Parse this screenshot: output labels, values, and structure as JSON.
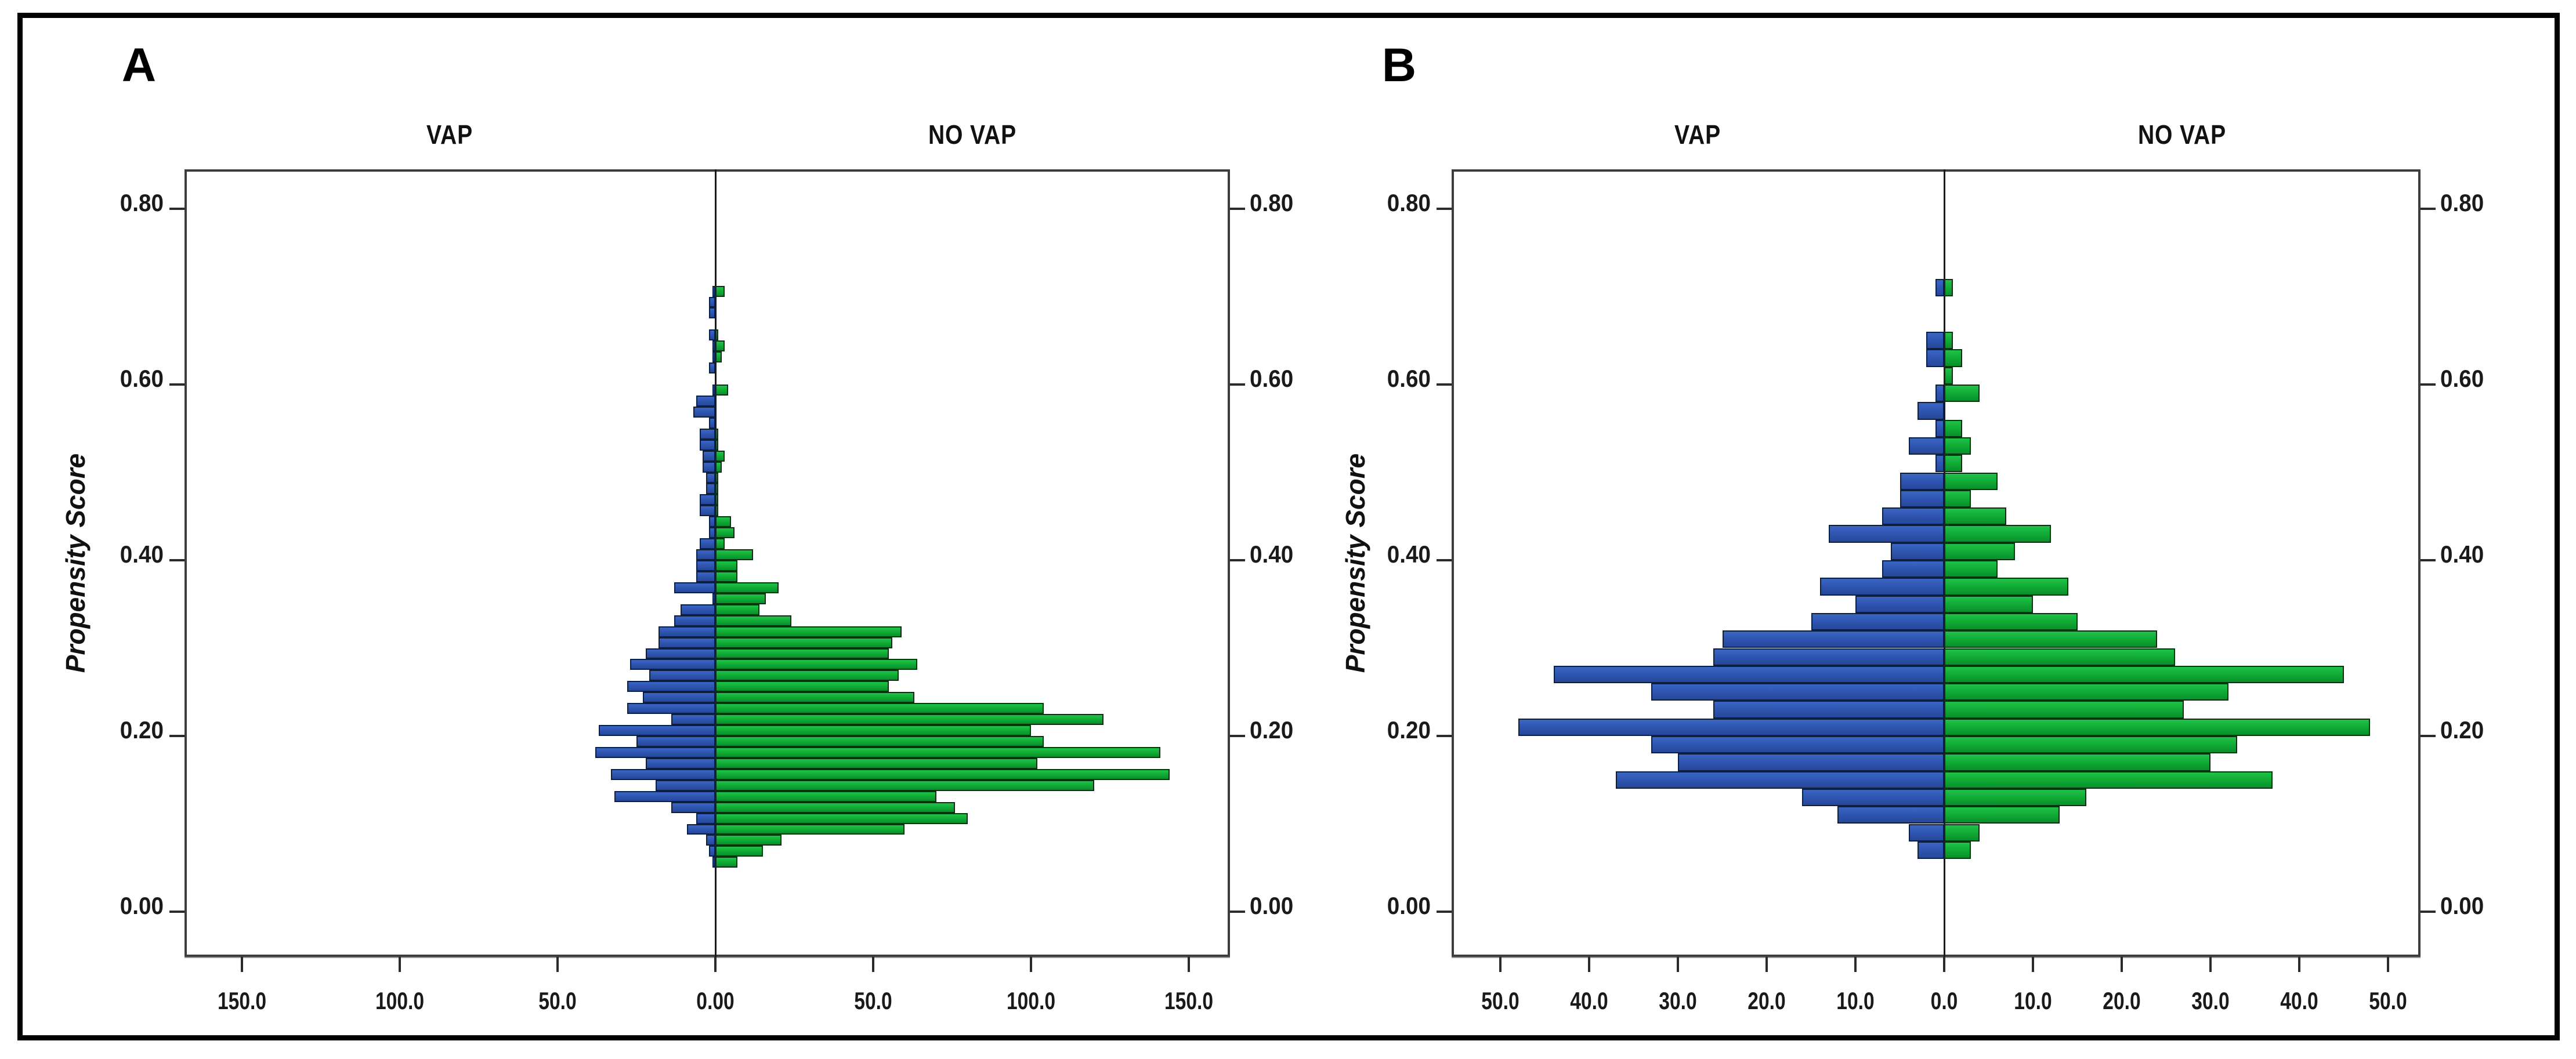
{
  "colors": {
    "vap_blue": "#2f56b2",
    "no_vap_green": "#10ab35",
    "vap_border": "#0d1f3f",
    "no_vap_border": "#06340f",
    "frame_gray": "#3d3d3d",
    "outer_border_black": "#000000",
    "background_white": "#ffffff",
    "text_black": "#1a1a1a"
  },
  "chart_data": [
    {
      "type": "bar",
      "variant": "mirrored_histogram_population_pyramid",
      "panel_label": "A",
      "group_left": "VAP",
      "group_right": "NO VAP",
      "ylabel": "Propensity Score",
      "xlabel": "",
      "legend": "none",
      "grid": "off",
      "ylim": [
        -0.05,
        0.845
      ],
      "xlim_each_side": 168,
      "bin_width": 0.0125,
      "y_ticks": [
        {
          "label": "0.80",
          "value": 0.8
        },
        {
          "label": "0.60",
          "value": 0.6
        },
        {
          "label": "0.40",
          "value": 0.4
        },
        {
          "label": "0.20",
          "value": 0.2
        },
        {
          "label": "0.00",
          "value": 0.0
        }
      ],
      "x_ticks": [
        {
          "label": "150.0",
          "value": -150
        },
        {
          "label": "100.0",
          "value": -100
        },
        {
          "label": "50.0",
          "value": -50
        },
        {
          "label": "0.00",
          "value": 0
        },
        {
          "label": "50.0",
          "value": 50
        },
        {
          "label": "100.0",
          "value": 100
        },
        {
          "label": "150.0",
          "value": 150
        }
      ],
      "bins_note": "each bin = [propensity_score_bin_start, vap_count, no_vap_count]",
      "bins": [
        [
          0.05,
          1,
          7
        ],
        [
          0.0625,
          2,
          15
        ],
        [
          0.075,
          3,
          21
        ],
        [
          0.0875,
          9,
          60
        ],
        [
          0.1,
          6,
          80
        ],
        [
          0.1125,
          14,
          76
        ],
        [
          0.125,
          32,
          70
        ],
        [
          0.1375,
          19,
          120
        ],
        [
          0.15,
          33,
          144
        ],
        [
          0.1625,
          22,
          102
        ],
        [
          0.175,
          38,
          141
        ],
        [
          0.1875,
          25,
          104
        ],
        [
          0.2,
          37,
          100
        ],
        [
          0.2125,
          14,
          123
        ],
        [
          0.225,
          28,
          104
        ],
        [
          0.2375,
          23,
          63
        ],
        [
          0.25,
          28,
          55
        ],
        [
          0.2625,
          21,
          58
        ],
        [
          0.275,
          27,
          64
        ],
        [
          0.2875,
          22,
          55
        ],
        [
          0.3,
          18,
          56
        ],
        [
          0.3125,
          18,
          59
        ],
        [
          0.325,
          13,
          24
        ],
        [
          0.3375,
          11,
          14
        ],
        [
          0.35,
          1,
          16
        ],
        [
          0.3625,
          13,
          20
        ],
        [
          0.375,
          6,
          7
        ],
        [
          0.3875,
          6,
          7
        ],
        [
          0.4,
          6,
          12
        ],
        [
          0.4125,
          5,
          3
        ],
        [
          0.425,
          2,
          6
        ],
        [
          0.4375,
          2,
          5
        ],
        [
          0.45,
          5,
          1
        ],
        [
          0.4625,
          5,
          1
        ],
        [
          0.475,
          3,
          1
        ],
        [
          0.4875,
          3,
          1
        ],
        [
          0.5,
          4,
          2
        ],
        [
          0.5125,
          4,
          3
        ],
        [
          0.525,
          5,
          1
        ],
        [
          0.5375,
          5,
          1
        ],
        [
          0.55,
          2,
          0
        ],
        [
          0.5625,
          7,
          0
        ],
        [
          0.575,
          6,
          0
        ],
        [
          0.5875,
          1,
          4
        ],
        [
          0.6,
          0,
          0
        ],
        [
          0.6125,
          2,
          0
        ],
        [
          0.625,
          1,
          2
        ],
        [
          0.6375,
          1,
          3
        ],
        [
          0.65,
          2,
          1
        ],
        [
          0.6625,
          0,
          0
        ],
        [
          0.675,
          2,
          0
        ],
        [
          0.6875,
          2,
          0
        ],
        [
          0.7,
          1,
          3
        ]
      ]
    },
    {
      "type": "bar",
      "variant": "mirrored_histogram_population_pyramid",
      "panel_label": "B",
      "group_left": "VAP",
      "group_right": "NO VAP",
      "ylabel": "Propensity Score",
      "xlabel": "",
      "legend": "none",
      "grid": "off",
      "ylim": [
        -0.05,
        0.845
      ],
      "xlim_each_side": 55,
      "bin_width": 0.02,
      "y_ticks": [
        {
          "label": "0.80",
          "value": 0.8
        },
        {
          "label": "0.60",
          "value": 0.6
        },
        {
          "label": "0.40",
          "value": 0.4
        },
        {
          "label": "0.20",
          "value": 0.2
        },
        {
          "label": "0.00",
          "value": 0.0
        }
      ],
      "x_ticks": [
        {
          "label": "50.0",
          "value": -50
        },
        {
          "label": "40.0",
          "value": -40
        },
        {
          "label": "30.0",
          "value": -30
        },
        {
          "label": "20.0",
          "value": -20
        },
        {
          "label": "10.0",
          "value": -10
        },
        {
          "label": "0.0",
          "value": 0
        },
        {
          "label": "10.0",
          "value": 10
        },
        {
          "label": "20.0",
          "value": 20
        },
        {
          "label": "30.0",
          "value": 30
        },
        {
          "label": "40.0",
          "value": 40
        },
        {
          "label": "50.0",
          "value": 50
        }
      ],
      "bins_note": "each bin = [propensity_score_bin_start, vap_count, no_vap_count]",
      "bins": [
        [
          0.06,
          3,
          3
        ],
        [
          0.08,
          4,
          4
        ],
        [
          0.1,
          12,
          13
        ],
        [
          0.12,
          16,
          16
        ],
        [
          0.14,
          37,
          37
        ],
        [
          0.16,
          30,
          30
        ],
        [
          0.18,
          33,
          33
        ],
        [
          0.2,
          48,
          48
        ],
        [
          0.22,
          26,
          27
        ],
        [
          0.24,
          33,
          32
        ],
        [
          0.26,
          44,
          45
        ],
        [
          0.28,
          26,
          26
        ],
        [
          0.3,
          25,
          24
        ],
        [
          0.32,
          15,
          15
        ],
        [
          0.34,
          10,
          10
        ],
        [
          0.36,
          14,
          14
        ],
        [
          0.38,
          7,
          6
        ],
        [
          0.4,
          6,
          8
        ],
        [
          0.42,
          13,
          12
        ],
        [
          0.44,
          7,
          7
        ],
        [
          0.46,
          5,
          3
        ],
        [
          0.48,
          5,
          6
        ],
        [
          0.5,
          1,
          2
        ],
        [
          0.52,
          4,
          3
        ],
        [
          0.54,
          1,
          2
        ],
        [
          0.56,
          3,
          0
        ],
        [
          0.58,
          1,
          4
        ],
        [
          0.6,
          0,
          1
        ],
        [
          0.62,
          2,
          2
        ],
        [
          0.64,
          2,
          1
        ],
        [
          0.66,
          0,
          0
        ],
        [
          0.68,
          0,
          0
        ],
        [
          0.7,
          1,
          1
        ]
      ]
    }
  ]
}
